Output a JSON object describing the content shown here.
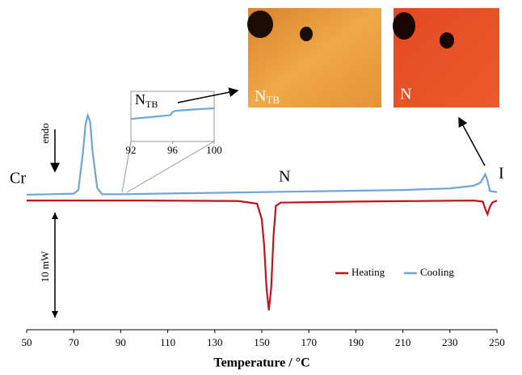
{
  "chart_data": [
    {
      "type": "line",
      "xlabel": "Temperature / °C",
      "xlim": [
        50,
        250
      ],
      "xticks": [
        50,
        70,
        90,
        110,
        130,
        150,
        170,
        190,
        210,
        230,
        250
      ],
      "ylim": [
        0,
        24
      ],
      "legend": "lower right",
      "series": [
        {
          "name": "Heating",
          "color": "#c0141c",
          "x": [
            50,
            100,
            140,
            148,
            150,
            151,
            152,
            153,
            154,
            155,
            156,
            158,
            190,
            240,
            244,
            245,
            246,
            247,
            248,
            250
          ],
          "values": [
            12.3,
            12.3,
            12.25,
            12.0,
            10.5,
            8,
            4,
            1.85,
            4,
            9,
            11.8,
            12.1,
            12.2,
            12.3,
            12.2,
            11.5,
            11.0,
            11.7,
            12.1,
            12.3
          ]
        },
        {
          "name": "Cooling",
          "color": "#6fa5d8",
          "x": [
            50,
            60,
            70,
            72,
            74,
            75,
            76,
            77,
            78,
            80,
            82,
            90,
            120,
            150,
            180,
            210,
            230,
            240,
            243,
            245,
            246,
            247,
            250
          ],
          "values": [
            12.85,
            12.9,
            12.95,
            13.3,
            17,
            19.5,
            20.4,
            19.8,
            17,
            13.5,
            12.9,
            12.9,
            13.0,
            13.1,
            13.2,
            13.3,
            13.45,
            13.7,
            14,
            14.8,
            14.2,
            13.2,
            13.1
          ]
        }
      ],
      "annotations": [
        "Cr",
        "N",
        "I",
        "endo"
      ],
      "scale_bar": {
        "value": 10,
        "label": "10 mW"
      }
    },
    {
      "type": "line",
      "xlim": [
        92,
        100
      ],
      "xticks": [
        92,
        96,
        100
      ],
      "ylim": [
        0,
        8
      ],
      "annotation": "N",
      "annotation_sub": "TB",
      "series": [
        {
          "color": "#6fa5d8",
          "x": [
            92,
            94,
            95.8,
            96,
            96.3,
            98,
            100
          ],
          "values": [
            3.6,
            3.9,
            4.2,
            4.7,
            4.9,
            5.1,
            5.3
          ]
        }
      ]
    }
  ],
  "micrographs": [
    {
      "label": "N",
      "sub": "TB"
    },
    {
      "label": "N"
    }
  ]
}
